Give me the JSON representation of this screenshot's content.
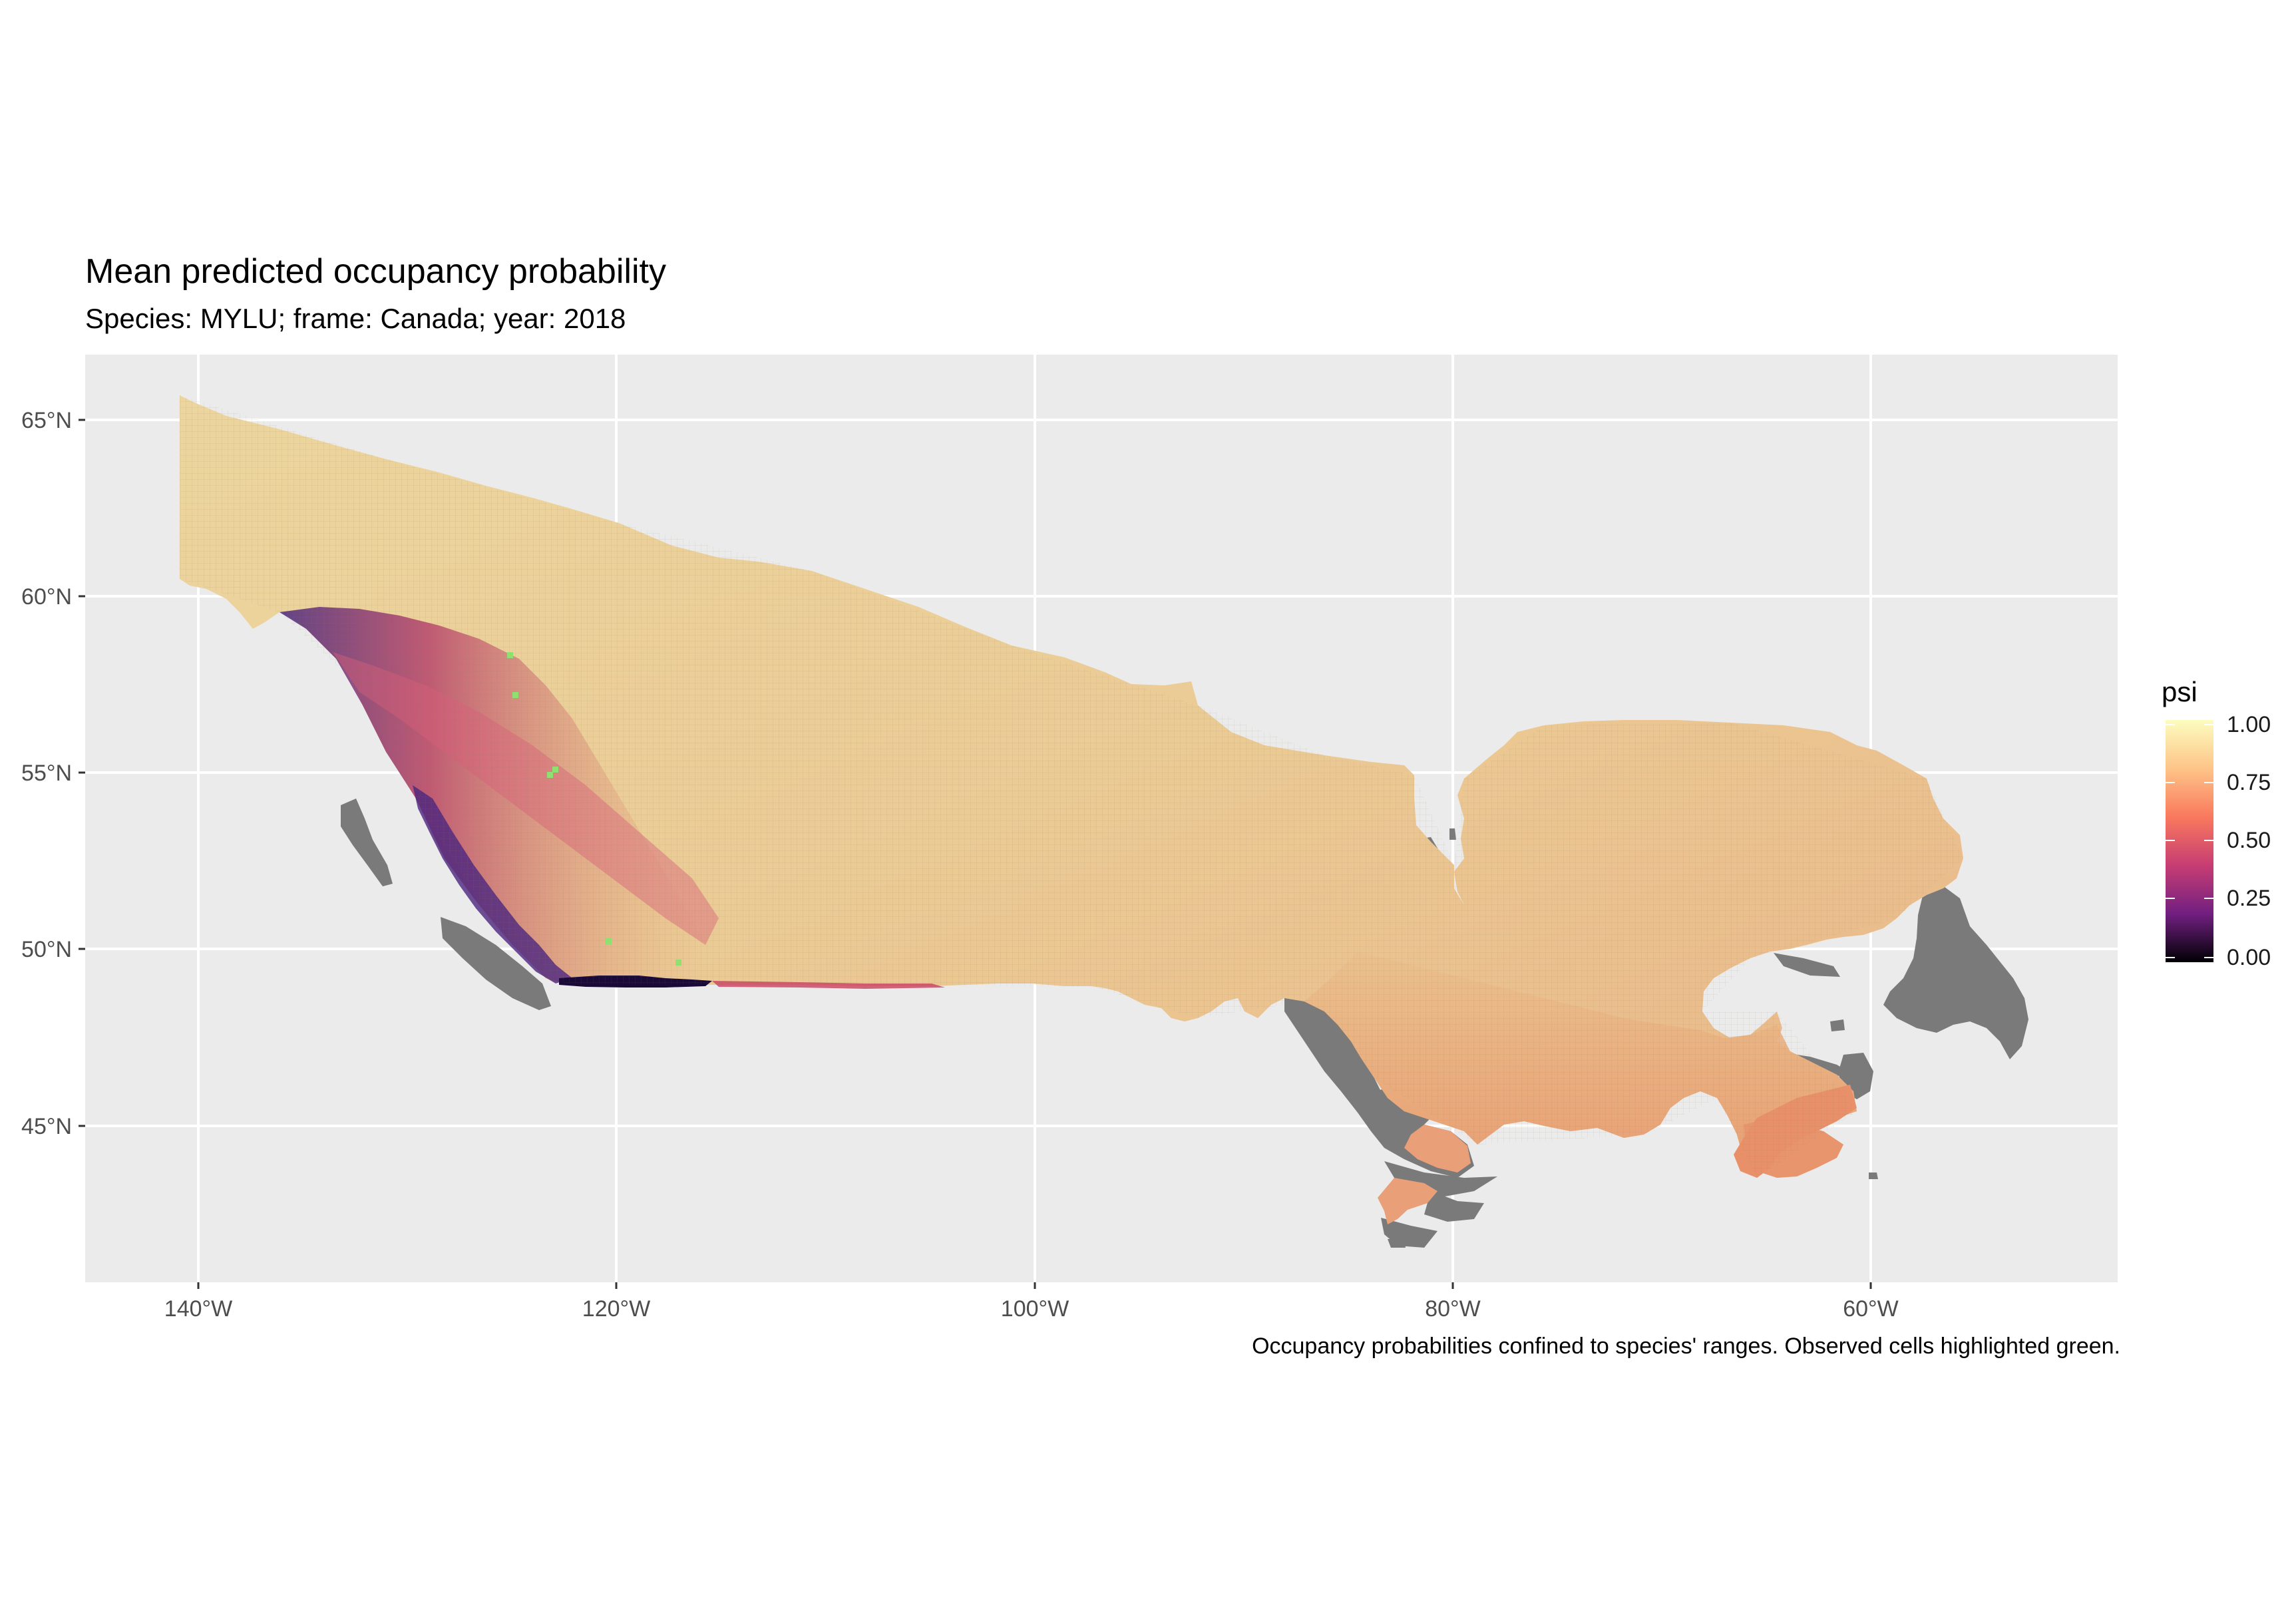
{
  "title": "Mean predicted occupancy probability",
  "subtitle": "Species: MYLU; frame: Canada; year: 2018",
  "caption": "Occupancy probabilities confined to species' ranges. Observed cells highlighted green.",
  "axes": {
    "x_ticks": [
      "140°W",
      "120°W",
      "100°W",
      "80°W",
      "60°W"
    ],
    "y_ticks": [
      "65°N",
      "60°N",
      "55°N",
      "50°N",
      "45°N"
    ]
  },
  "legend": {
    "title": "psi",
    "labels": [
      "1.00",
      "0.75",
      "0.50",
      "0.25",
      "0.00"
    ],
    "colors": [
      "#fcfdbf",
      "#fe9f6d",
      "#de4968",
      "#8c2981",
      "#3b0f70",
      "#000004"
    ]
  },
  "colors": {
    "panel_bg": "#ebebeb",
    "grid": "#ffffff",
    "high_occupancy": "#e9c592",
    "mid_occupancy": "#e8946c",
    "low_occupancy": "#5b2a86",
    "outside_range": "#7a7a7a",
    "observed": "#8fe070"
  }
}
